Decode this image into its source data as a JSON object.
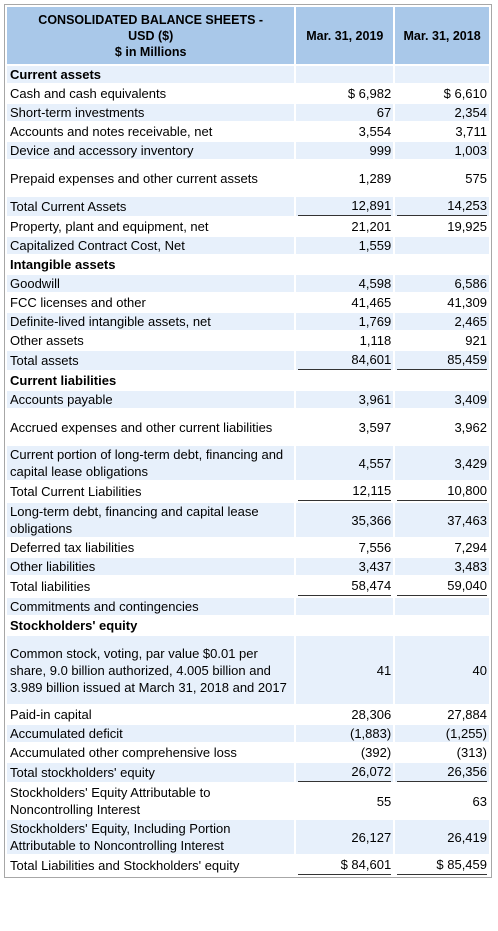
{
  "table": {
    "title_line1": "CONSOLIDATED BALANCE SHEETS -",
    "title_line2": "USD ($)",
    "title_line3": "$ in Millions",
    "col1": "Mar. 31, 2019",
    "col2": "Mar. 31, 2018",
    "rows": [
      {
        "label": "Current assets",
        "c1": "",
        "c2": "",
        "section": true
      },
      {
        "label": "Cash and cash equivalents",
        "c1": "$ 6,982",
        "c2": "$ 6,610"
      },
      {
        "label": "Short-term investments",
        "c1": "67",
        "c2": "2,354"
      },
      {
        "label": "Accounts and notes receivable, net",
        "c1": "3,554",
        "c2": "3,711"
      },
      {
        "label": "Device and accessory inventory",
        "c1": "999",
        "c2": "1,003"
      },
      {
        "label": "Prepaid expenses and other current assets",
        "c1": "1,289",
        "c2": "575",
        "lines": 2
      },
      {
        "label": "Total Current Assets",
        "c1": "12,891",
        "c2": "14,253",
        "underline": true
      },
      {
        "label": "Property, plant and equipment, net",
        "c1": "21,201",
        "c2": "19,925"
      },
      {
        "label": "Capitalized Contract Cost, Net",
        "c1": "1,559",
        "c2": ""
      },
      {
        "label": "Intangible assets",
        "c1": "",
        "c2": "",
        "section": true
      },
      {
        "label": "Goodwill",
        "c1": "4,598",
        "c2": "6,586"
      },
      {
        "label": "FCC licenses and other",
        "c1": "41,465",
        "c2": "41,309"
      },
      {
        "label": "Definite-lived intangible assets, net",
        "c1": "1,769",
        "c2": "2,465"
      },
      {
        "label": "Other assets",
        "c1": "1,118",
        "c2": "921"
      },
      {
        "label": "Total assets",
        "c1": "84,601",
        "c2": "85,459",
        "underline": true
      },
      {
        "label": "Current liabilities",
        "c1": "",
        "c2": "",
        "section": true
      },
      {
        "label": "Accounts payable",
        "c1": "3,961",
        "c2": "3,409"
      },
      {
        "label": "Accrued expenses and other current liabilities",
        "c1": "3,597",
        "c2": "3,962",
        "lines": 2
      },
      {
        "label": "Current portion of long-term debt, financing and capital lease obligations",
        "c1": "4,557",
        "c2": "3,429",
        "lines": 2
      },
      {
        "label": "Total Current Liabilities",
        "c1": "12,115",
        "c2": "10,800",
        "underline": true
      },
      {
        "label": "Long-term debt, financing and capital lease obligations",
        "c1": "35,366",
        "c2": "37,463",
        "lines": 2
      },
      {
        "label": "Deferred tax liabilities",
        "c1": "7,556",
        "c2": "7,294"
      },
      {
        "label": "Other liabilities",
        "c1": "3,437",
        "c2": "3,483"
      },
      {
        "label": "Total liabilities",
        "c1": "58,474",
        "c2": "59,040",
        "underline": true
      },
      {
        "label": "Commitments and contingencies",
        "c1": "",
        "c2": ""
      },
      {
        "label": "Stockholders' equity",
        "c1": "",
        "c2": "",
        "section": true
      },
      {
        "label": "Common stock, voting, par value $0.01 per share, 9.0 billion authorized, 4.005 billion and 3.989 billion issued at March 31, 2018 and 2017",
        "c1": "41",
        "c2": "40",
        "lines": 4
      },
      {
        "label": "Paid-in capital",
        "c1": "28,306",
        "c2": "27,884"
      },
      {
        "label": "Accumulated deficit",
        "c1": "(1,883)",
        "c2": "(1,255)"
      },
      {
        "label": "Accumulated other comprehensive loss",
        "c1": "(392)",
        "c2": "(313)"
      },
      {
        "label": "Total stockholders' equity",
        "c1": "26,072",
        "c2": "26,356",
        "underline": true
      },
      {
        "label": "Stockholders' Equity Attributable to Noncontrolling Interest",
        "c1": "55",
        "c2": "63",
        "lines": 2
      },
      {
        "label": "Stockholders' Equity, Including Portion Attributable to Noncontrolling Interest",
        "c1": "26,127",
        "c2": "26,419",
        "lines": 2
      },
      {
        "label": "Total Liabilities and Stockholders' equity",
        "c1": "$ 84,601",
        "c2": "$ 85,459",
        "underline": true
      }
    ]
  }
}
